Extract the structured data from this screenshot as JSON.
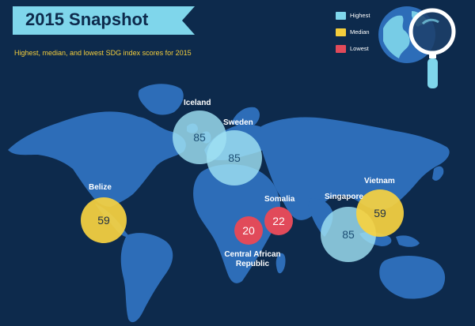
{
  "title": "2015 Snapshot",
  "subtitle": "Highest, median, and lowest SDG index scores for 2015",
  "legend": [
    {
      "label": "Highest",
      "color": "#7fd6eb"
    },
    {
      "label": "Median",
      "color": "#f3cd3c"
    },
    {
      "label": "Lowest",
      "color": "#e14a5a"
    }
  ],
  "places": {
    "iceland": {
      "name": "Iceland",
      "score": "85",
      "level": "Highest"
    },
    "sweden": {
      "name": "Sweden",
      "score": "85",
      "level": "Highest"
    },
    "belize": {
      "name": "Belize",
      "score": "59",
      "level": "Median"
    },
    "somalia": {
      "name": "Somalia",
      "score": "22",
      "level": "Lowest"
    },
    "car": {
      "name_line1": "Central African",
      "name_line2": "Republic",
      "score": "20",
      "level": "Lowest"
    },
    "singapore": {
      "name": "Singapore",
      "score": "85",
      "level": "Highest"
    },
    "vietnam": {
      "name": "Vietnam",
      "score": "59",
      "level": "Median"
    }
  },
  "colors": {
    "background": "#0d2a4c",
    "land": "#2d6db8",
    "banner": "#7fd6eb",
    "accent_yellow": "#f3cd3c"
  },
  "icons": {
    "globe": "magnifier-globe-icon"
  }
}
